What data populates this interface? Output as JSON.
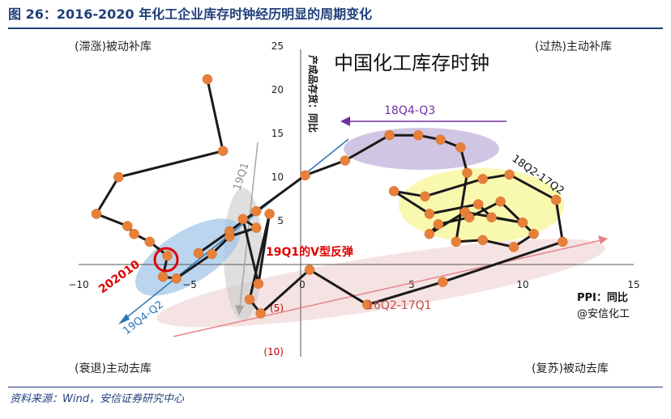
{
  "header": {
    "title": "图 26：2016-2020 年化工企业库存时钟经历明显的周期变化"
  },
  "source": "资料来源：Wind，安信证券研究中心",
  "chart_data": {
    "type": "scatter",
    "title": "中国化工库存时钟",
    "xlabel": "PPI：同比",
    "ylabel": "产成品存货：同比",
    "xlim": [
      -10,
      15
    ],
    "ylim": [
      -10,
      25
    ],
    "xticks": [
      "−10",
      "−5",
      "0",
      "5",
      "10",
      "15"
    ],
    "yticks": [
      "(10)",
      "(5)",
      "0",
      "5",
      "10",
      "15",
      "20",
      "25"
    ],
    "quadrants": {
      "top_left": "(滞涨)被动补库",
      "top_right": "(过热)主动补库",
      "bottom_left": "(衰退)主动去库",
      "bottom_right": "(复苏)被动去库"
    },
    "watermark": "@安信化工",
    "annotations": {
      "a1": "18Q4-Q3",
      "a2": "18Q2-17Q2",
      "a3": "16Q2-17Q1",
      "a4": "19Q1",
      "a5": "19Q1的V型反弹",
      "a6": "19Q4-Q2",
      "a7": "202010"
    },
    "series": [
      {
        "values": [
          [
            -4.2,
            21.2
          ],
          [
            -3.5,
            13.0
          ],
          [
            -8.2,
            10.0
          ],
          [
            -9.2,
            5.8
          ],
          [
            -7.8,
            4.4
          ],
          [
            -7.5,
            3.5
          ],
          [
            -6.8,
            2.6
          ],
          [
            -6.0,
            1.0
          ],
          [
            -6.2,
            -1.4
          ],
          [
            -5.6,
            -1.6
          ],
          [
            -4.0,
            1.2
          ],
          [
            -3.2,
            3.2
          ],
          [
            -2.0,
            4.2
          ],
          [
            -2.6,
            5.2
          ],
          [
            -1.9,
            -2.2
          ],
          [
            -1.4,
            5.8
          ],
          [
            -2.3,
            -4.0
          ],
          [
            -1.8,
            -5.6
          ],
          [
            0.4,
            -0.6
          ],
          [
            3.0,
            -4.6
          ],
          [
            6.4,
            -2.0
          ],
          [
            11.8,
            2.6
          ],
          [
            11.5,
            7.4
          ],
          [
            9.4,
            10.3
          ],
          [
            8.2,
            9.8
          ],
          [
            5.6,
            7.8
          ],
          [
            4.2,
            8.4
          ],
          [
            5.8,
            5.8
          ],
          [
            8.0,
            6.9
          ],
          [
            8.6,
            5.4
          ],
          [
            10.0,
            4.8
          ],
          [
            7.4,
            6.0
          ],
          [
            5.8,
            3.5
          ],
          [
            6.2,
            4.6
          ],
          [
            7.6,
            5.4
          ],
          [
            9.0,
            7.2
          ],
          [
            10.5,
            3.5
          ],
          [
            9.6,
            2.0
          ],
          [
            8.2,
            2.8
          ],
          [
            7.0,
            2.6
          ],
          [
            7.5,
            10.5
          ],
          [
            7.2,
            13.4
          ],
          [
            6.3,
            14.3
          ],
          [
            5.3,
            14.8
          ],
          [
            4.0,
            14.8
          ],
          [
            2.0,
            11.9
          ],
          [
            0.2,
            10.2
          ],
          [
            -2.0,
            6.1
          ],
          [
            -3.2,
            3.8
          ],
          [
            -4.6,
            1.3
          ]
        ]
      }
    ]
  }
}
